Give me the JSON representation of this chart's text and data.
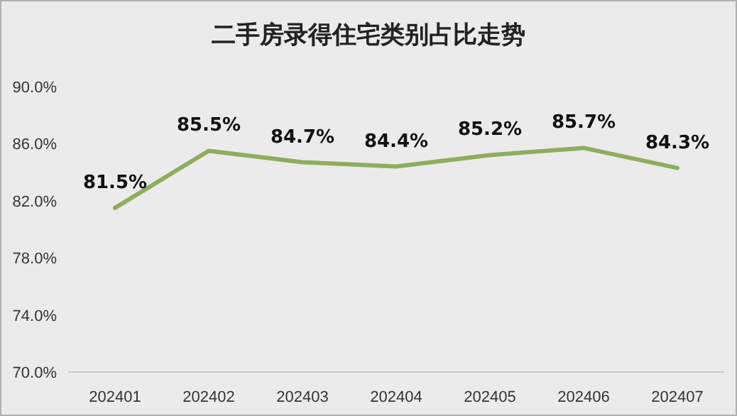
{
  "chart_data": {
    "type": "line",
    "title": "二手房录得住宅类别占比走势",
    "categories": [
      "202401",
      "202402",
      "202403",
      "202404",
      "202405",
      "202406",
      "202407"
    ],
    "series": [
      {
        "color": "#8fad5c",
        "values": [
          81.5,
          85.5,
          84.7,
          84.4,
          85.2,
          85.7,
          84.3
        ]
      }
    ],
    "value_labels": [
      "81.5%",
      "85.5%",
      "84.7%",
      "84.4%",
      "85.2%",
      "85.7%",
      "84.3%"
    ],
    "ylim": [
      70,
      90
    ],
    "yticks": [
      {
        "value": 70,
        "label": "70.0%"
      },
      {
        "value": 74,
        "label": "74.0%"
      },
      {
        "value": 78,
        "label": "78.0%"
      },
      {
        "value": 82,
        "label": "82.0%"
      },
      {
        "value": 86,
        "label": "86.0%"
      },
      {
        "value": 90,
        "label": "90.0%"
      }
    ],
    "grid": false,
    "marker": "none",
    "line_style": "solid"
  }
}
